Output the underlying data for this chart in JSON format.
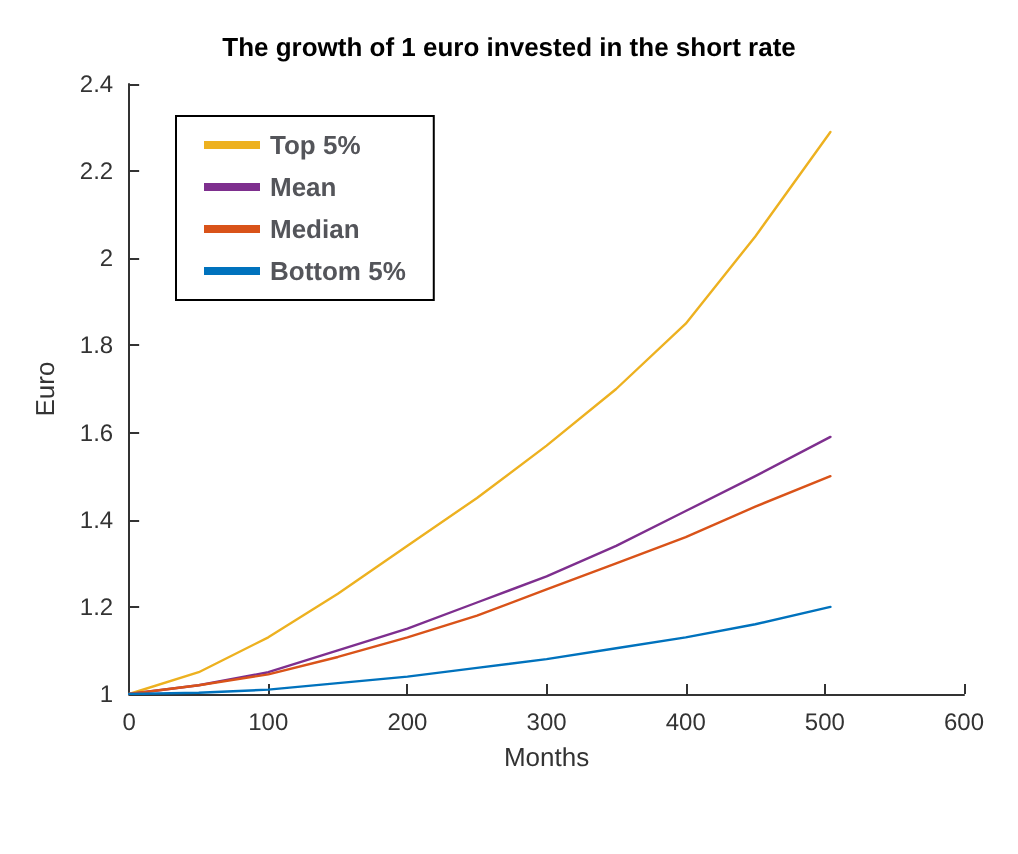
{
  "chart_data": {
    "type": "line",
    "title": "The growth of 1 euro invested in the short rate",
    "xlabel": "Months",
    "ylabel": "Euro",
    "x": [
      0,
      50,
      100,
      150,
      200,
      250,
      300,
      350,
      400,
      450,
      504
    ],
    "series": [
      {
        "name": "Top 5%",
        "color": "#edb120",
        "values": [
          1,
          1.05,
          1.13,
          1.23,
          1.34,
          1.45,
          1.57,
          1.7,
          1.85,
          2.05,
          2.29
        ]
      },
      {
        "name": "Mean",
        "color": "#7e2f8e",
        "values": [
          1,
          1.02,
          1.05,
          1.1,
          1.15,
          1.21,
          1.27,
          1.34,
          1.42,
          1.5,
          1.59
        ]
      },
      {
        "name": "Median",
        "color": "#d95319",
        "values": [
          1,
          1.02,
          1.045,
          1.085,
          1.13,
          1.18,
          1.24,
          1.3,
          1.36,
          1.43,
          1.5
        ]
      },
      {
        "name": "Bottom 5%",
        "color": "#0072bd",
        "values": [
          1,
          1.003,
          1.01,
          1.025,
          1.04,
          1.06,
          1.08,
          1.105,
          1.13,
          1.16,
          1.2
        ]
      }
    ],
    "xlim": [
      0,
      600
    ],
    "xticks": [
      0,
      100,
      200,
      300,
      400,
      500,
      600
    ],
    "ylim": [
      1,
      2.4
    ],
    "yticks": [
      1,
      1.2,
      1.4,
      1.6,
      1.8,
      2,
      2.2,
      2.4
    ],
    "grid": false,
    "legend": "top left",
    "marker": "none",
    "line_style": "solid"
  }
}
